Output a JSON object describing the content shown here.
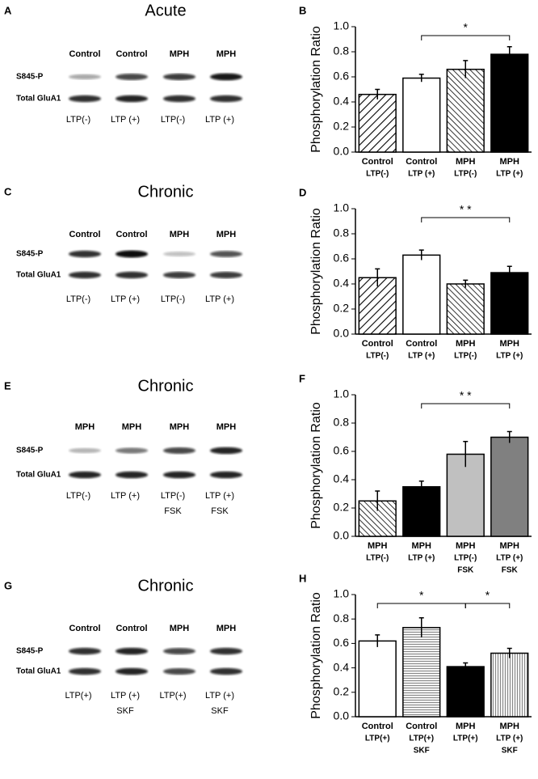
{
  "panels": [
    {
      "letter": "A",
      "title": "Acute",
      "headers": [
        "Control",
        "Control",
        "MPH",
        "MPH"
      ],
      "rows": [
        "S845-P",
        "Total GluA1"
      ],
      "lanes": [
        [
          "LTP(-)"
        ],
        [
          "LTP (+)"
        ],
        [
          "LTP(-)"
        ],
        [
          "LTP (+)"
        ]
      ]
    },
    {
      "letter": "C",
      "title": "Chronic",
      "headers": [
        "Control",
        "Control",
        "MPH",
        "MPH"
      ],
      "rows": [
        "S845-P",
        "Total GluA1"
      ],
      "lanes": [
        [
          "LTP(-)"
        ],
        [
          "LTP (+)"
        ],
        [
          "LTP(-)"
        ],
        [
          "LTP (+)"
        ]
      ]
    },
    {
      "letter": "E",
      "title": "Chronic",
      "headers": [
        "MPH",
        "MPH",
        "MPH",
        "MPH"
      ],
      "rows": [
        "S845-P",
        "Total GluA1"
      ],
      "lanes": [
        [
          "LTP(-)"
        ],
        [
          "LTP (+)"
        ],
        [
          "LTP(-)",
          "FSK"
        ],
        [
          "LTP (+)",
          "FSK"
        ]
      ]
    },
    {
      "letter": "G",
      "title": "Chronic",
      "headers": [
        "Control",
        "Control",
        "MPH",
        "MPH"
      ],
      "rows": [
        "S845-P",
        "Total GluA1"
      ],
      "lanes": [
        [
          "LTP(+)"
        ],
        [
          "LTP (+)",
          "SKF"
        ],
        [
          "LTP(+)"
        ],
        [
          "LTP (+)",
          "SKF"
        ]
      ]
    }
  ],
  "chart_data": [
    {
      "type": "bar",
      "letter": "B",
      "y_label": "Phosphorylation Ratio",
      "categories": [
        [
          "Control",
          "LTP(-)"
        ],
        [
          "Control",
          "LTP (+)"
        ],
        [
          "MPH",
          "LTP(-)"
        ],
        [
          "MPH",
          "LTP (+)"
        ]
      ],
      "values": [
        0.46,
        0.59,
        0.66,
        0.78
      ],
      "errors": [
        0.04,
        0.03,
        0.07,
        0.06
      ],
      "fills": [
        "hatch",
        "white",
        "hatch-reverse",
        "black"
      ],
      "ylim": [
        0,
        1
      ],
      "yticks": [
        {
          "value": 0,
          "label": "0.0"
        },
        0.2,
        0.4,
        0.6,
        0.8,
        {
          "value": 1,
          "label": "1.0"
        }
      ],
      "annotations": [
        {
          "from": 1,
          "to": 3,
          "label": "*"
        }
      ]
    },
    {
      "type": "bar",
      "letter": "D",
      "y_label": "Phosphorylation Ratio",
      "categories": [
        [
          "Control",
          "LTP(-)"
        ],
        [
          "Control",
          "LTP (+)"
        ],
        [
          "MPH",
          "LTP(-)"
        ],
        [
          "MPH",
          "LTP (+)"
        ]
      ],
      "values": [
        0.45,
        0.63,
        0.4,
        0.49
      ],
      "errors": [
        0.07,
        0.04,
        0.03,
        0.05
      ],
      "fills": [
        "hatch",
        "white",
        "hatch-reverse",
        "black"
      ],
      "ylim": [
        0,
        1
      ],
      "yticks": [
        {
          "value": 0,
          "label": "0.0"
        },
        0.2,
        0.4,
        0.6,
        0.8,
        {
          "value": 1,
          "label": "1.0"
        }
      ],
      "annotations": [
        {
          "from": 1,
          "to": 3,
          "label": "* *"
        }
      ]
    },
    {
      "type": "bar",
      "letter": "F",
      "y_label": "Phosphorylation Ratio",
      "categories": [
        [
          "MPH",
          "LTP(-)"
        ],
        [
          "MPH",
          "LTP (+)"
        ],
        [
          "MPH",
          "LTP(-)",
          "FSK"
        ],
        [
          "MPH",
          "LTP (+)",
          "FSK"
        ]
      ],
      "values": [
        0.25,
        0.35,
        0.58,
        0.7
      ],
      "errors": [
        0.07,
        0.04,
        0.09,
        0.04
      ],
      "fills": [
        "hatch-reverse",
        "black",
        "#c0c0c0",
        "#808080"
      ],
      "ylim": [
        0,
        1
      ],
      "yticks": [
        {
          "value": 0,
          "label": "0.0"
        },
        0.2,
        0.4,
        0.6,
        0.8,
        {
          "value": 1,
          "label": "1.0"
        }
      ],
      "annotations": [
        {
          "from": 1,
          "to": 3,
          "label": "* *"
        }
      ]
    },
    {
      "type": "bar",
      "letter": "H",
      "y_label": "Phosphorylation Ratio",
      "categories": [
        [
          "Control",
          "LTP(+)"
        ],
        [
          "Control",
          "LTP(+)",
          "SKF"
        ],
        [
          "MPH",
          "LTP(+)"
        ],
        [
          "MPH",
          "LTP (+)",
          "SKF"
        ]
      ],
      "values": [
        0.62,
        0.73,
        0.41,
        0.52
      ],
      "errors": [
        0.05,
        0.08,
        0.03,
        0.04
      ],
      "fills": [
        "white",
        "horizontal-stripes",
        "black",
        "vertical-stripes"
      ],
      "ylim": [
        0,
        1
      ],
      "yticks": [
        {
          "value": 0,
          "label": "0.0"
        },
        0.2,
        0.4,
        0.6,
        0.8,
        {
          "value": 1,
          "label": "1.0"
        }
      ],
      "annotations": [
        {
          "from": 0,
          "to": 2,
          "label": "*"
        },
        {
          "from": 2,
          "to": 3,
          "label": "*"
        }
      ]
    }
  ]
}
